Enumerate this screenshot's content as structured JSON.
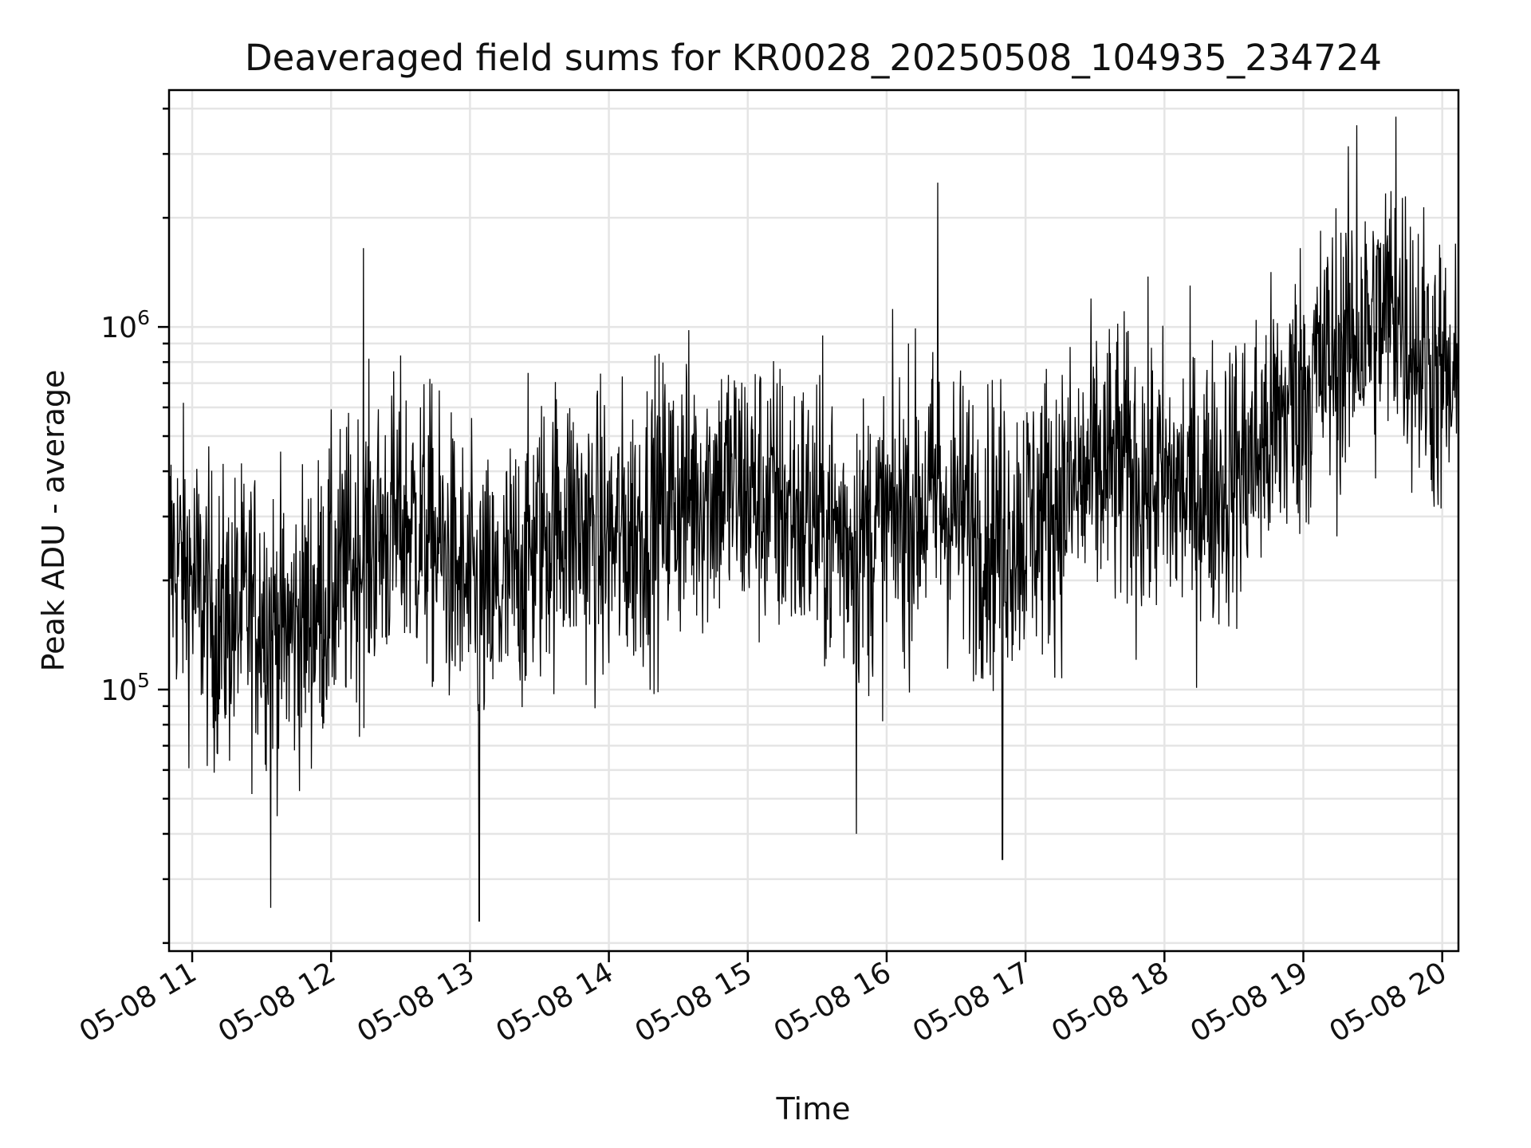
{
  "chart_data": {
    "type": "line",
    "title": "Deaveraged field sums for KR0028_20250508_104935_234724",
    "xlabel": "Time",
    "ylabel": "Peak ADU - average",
    "x_axis": {
      "kind": "time",
      "range": [
        "05-08 10:50",
        "05-08 20:07"
      ],
      "ticks": [
        "05-08 11",
        "05-08 12",
        "05-08 13",
        "05-08 14",
        "05-08 15",
        "05-08 16",
        "05-08 17",
        "05-08 18",
        "05-08 19",
        "05-08 20"
      ],
      "tick_label_rotation_deg": 30
    },
    "y_axis": {
      "scale": "log",
      "range": [
        19000,
        4500000
      ],
      "major_ticks": [
        {
          "value": 100000,
          "base": "10",
          "exp": "5"
        },
        {
          "value": 1000000,
          "base": "10",
          "exp": "6"
        }
      ]
    },
    "grid": true,
    "legend": "none",
    "series_color": "#000000",
    "series": [
      {
        "points": [
          [
            "05-08 10:50",
            240000
          ],
          [
            "05-08 11:00",
            200000
          ],
          [
            "05-08 11:10",
            150000
          ],
          [
            "05-08 11:20",
            160000
          ],
          [
            "05-08 11:30",
            170000
          ],
          [
            "05-08 11:40",
            140000
          ],
          [
            "05-08 11:50",
            160000
          ],
          [
            "05-08 12:00",
            190000
          ],
          [
            "05-08 12:10",
            230000
          ],
          [
            "05-08 12:20",
            260000
          ],
          [
            "05-08 12:30",
            290000
          ],
          [
            "05-08 12:40",
            280000
          ],
          [
            "05-08 12:50",
            230000
          ],
          [
            "05-08 13:00",
            180000
          ],
          [
            "05-08 13:10",
            170000
          ],
          [
            "05-08 13:20",
            210000
          ],
          [
            "05-08 13:30",
            260000
          ],
          [
            "05-08 13:40",
            300000
          ],
          [
            "05-08 13:50",
            270000
          ],
          [
            "05-08 14:00",
            250000
          ],
          [
            "05-08 14:10",
            270000
          ],
          [
            "05-08 14:20",
            310000
          ],
          [
            "05-08 14:30",
            340000
          ],
          [
            "05-08 14:40",
            360000
          ],
          [
            "05-08 14:50",
            370000
          ],
          [
            "05-08 15:00",
            350000
          ],
          [
            "05-08 15:10",
            330000
          ],
          [
            "05-08 15:20",
            310000
          ],
          [
            "05-08 15:30",
            290000
          ],
          [
            "05-08 15:40",
            270000
          ],
          [
            "05-08 15:50",
            260000
          ],
          [
            "05-08 16:00",
            280000
          ],
          [
            "05-08 16:10",
            320000
          ],
          [
            "05-08 16:20",
            330000
          ],
          [
            "05-08 16:30",
            310000
          ],
          [
            "05-08 16:40",
            280000
          ],
          [
            "05-08 16:50",
            270000
          ],
          [
            "05-08 17:00",
            290000
          ],
          [
            "05-08 17:10",
            320000
          ],
          [
            "05-08 17:20",
            350000
          ],
          [
            "05-08 17:30",
            390000
          ],
          [
            "05-08 17:40",
            410000
          ],
          [
            "05-08 17:50",
            380000
          ],
          [
            "05-08 18:00",
            360000
          ],
          [
            "05-08 18:10",
            350000
          ],
          [
            "05-08 18:20",
            360000
          ],
          [
            "05-08 18:30",
            390000
          ],
          [
            "05-08 18:40",
            450000
          ],
          [
            "05-08 18:50",
            560000
          ],
          [
            "05-08 19:00",
            680000
          ],
          [
            "05-08 19:10",
            800000
          ],
          [
            "05-08 19:20",
            900000
          ],
          [
            "05-08 19:30",
            1000000
          ],
          [
            "05-08 19:40",
            1150000
          ],
          [
            "05-08 19:50",
            880000
          ],
          [
            "05-08 20:00",
            700000
          ],
          [
            "05-08 20:07",
            600000
          ]
        ],
        "note_spikes": [
          [
            "05-08 12:14",
            1650000
          ],
          [
            "05-08 16:22",
            2500000
          ],
          [
            "05-08 19:23",
            3600000
          ],
          [
            "05-08 19:40",
            3800000
          ],
          [
            "05-08 13:04",
            23000
          ],
          [
            "05-08 11:34",
            25000
          ],
          [
            "05-08 16:50",
            34000
          ],
          [
            "05-08 15:47",
            40000
          ]
        ]
      }
    ]
  }
}
